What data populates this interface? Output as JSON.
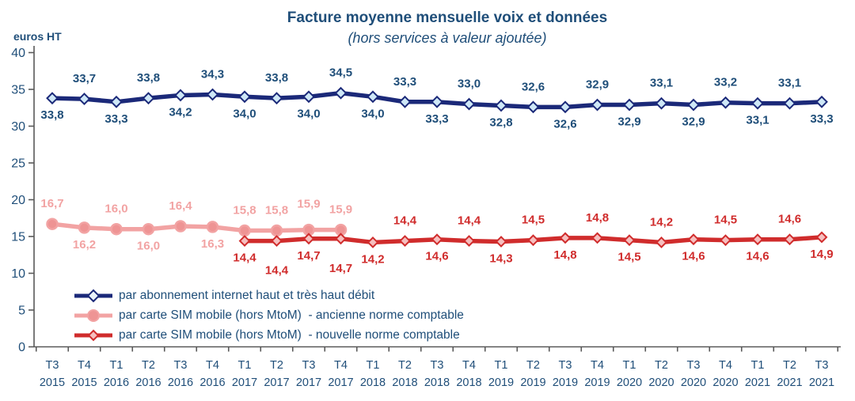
{
  "title": "Facture moyenne mensuelle voix et données",
  "subtitle": "(hors services à valeur ajoutée)",
  "y_axis_title": "euros HT",
  "colors": {
    "text_navy": "#1F4E79",
    "axis_gray": "#595959",
    "blue_line": "#1B2979",
    "blue_marker_fill": "#CFE8F7",
    "pink_line": "#F2A3A3",
    "pink_marker_fill": "#EE9494",
    "red_line": "#D02C2C",
    "red_marker_fill": "#F6BFBF"
  },
  "chart_data": {
    "type": "line",
    "title": "Facture moyenne mensuelle voix et données",
    "subtitle": "(hors services à valeur ajoutée)",
    "ylabel": "euros HT",
    "ylim": [
      0,
      40
    ],
    "ytick_step": 5,
    "grid": false,
    "legend_position": "inside-bottom-left",
    "decimal_separator": ",",
    "x_quarters": [
      "T3",
      "T4",
      "T1",
      "T2",
      "T3",
      "T4",
      "T1",
      "T2",
      "T3",
      "T4",
      "T1",
      "T2",
      "T3",
      "T4",
      "T1",
      "T2",
      "T3",
      "T4",
      "T1",
      "T2",
      "T3",
      "T4",
      "T1",
      "T2",
      "T3"
    ],
    "x_years": [
      "2015",
      "2015",
      "2016",
      "2016",
      "2016",
      "2016",
      "2017",
      "2017",
      "2017",
      "2017",
      "2018",
      "2018",
      "2018",
      "2018",
      "2019",
      "2019",
      "2019",
      "2019",
      "2020",
      "2020",
      "2020",
      "2020",
      "2021",
      "2021",
      "2021"
    ],
    "series": [
      {
        "name": "par abonnement internet haut et très haut débit",
        "marker": "diamond",
        "line_color": "#1B2979",
        "marker_fill": "#CFE8F7",
        "label_color": "#1F4E79",
        "start_index": 0,
        "values": [
          33.8,
          33.7,
          33.3,
          33.8,
          34.2,
          34.3,
          34.0,
          33.8,
          34.0,
          34.5,
          34.0,
          33.3,
          33.3,
          33.0,
          32.8,
          32.6,
          32.6,
          32.9,
          32.9,
          33.1,
          32.9,
          33.2,
          33.1,
          33.1,
          33.3
        ],
        "label_positions": [
          "below",
          "above",
          "below",
          "above",
          "below",
          "above",
          "below",
          "above",
          "below",
          "above",
          "below",
          "above",
          "below",
          "above",
          "below",
          "above",
          "below",
          "above",
          "below",
          "above",
          "below",
          "above",
          "below",
          "above",
          "below"
        ]
      },
      {
        "name": "par carte SIM mobile (hors MtoM)  - ancienne norme comptable",
        "marker": "circle",
        "line_color": "#F2A3A3",
        "marker_fill": "#EE9494",
        "label_color": "#F2A3A3",
        "start_index": 0,
        "values": [
          16.7,
          16.2,
          16.0,
          16.0,
          16.4,
          16.3,
          15.8,
          15.8,
          15.9,
          15.9
        ],
        "label_positions": [
          "above",
          "below",
          "above",
          "below",
          "above",
          "below",
          "above",
          "above",
          "above_high",
          "above"
        ]
      },
      {
        "name": "par carte SIM mobile (hors MtoM)  - nouvelle norme comptable",
        "marker": "diamond",
        "line_color": "#D02C2C",
        "marker_fill": "#F6BFBF",
        "label_color": "#D02C2C",
        "start_index": 6,
        "values": [
          14.4,
          14.4,
          14.7,
          14.7,
          14.2,
          14.4,
          14.6,
          14.4,
          14.3,
          14.5,
          14.8,
          14.8,
          14.5,
          14.2,
          14.6,
          14.5,
          14.6,
          14.6,
          14.9
        ],
        "label_positions": [
          "below",
          "below_low",
          "below",
          "below_low",
          "below",
          "above",
          "below",
          "above",
          "below",
          "above",
          "below",
          "above",
          "below",
          "above",
          "below",
          "above",
          "below",
          "above",
          "below"
        ]
      }
    ]
  }
}
